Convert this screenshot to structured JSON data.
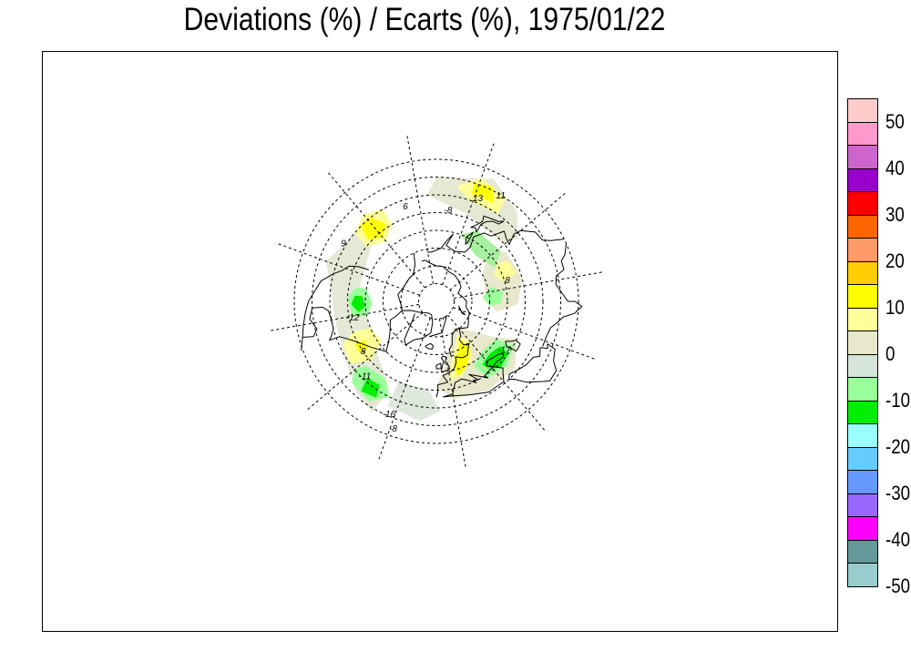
{
  "title": "Deviations (%) / Ecarts (%), 1975/01/22",
  "legend": {
    "levels": [
      {
        "color": "#ffcccc"
      },
      {
        "color": "#ff99cc"
      },
      {
        "color": "#cc66cc"
      },
      {
        "color": "#9900cc"
      },
      {
        "color": "#ff0000"
      },
      {
        "color": "#ff6600"
      },
      {
        "color": "#ff9966"
      },
      {
        "color": "#ffcc00"
      },
      {
        "color": "#ffff00"
      },
      {
        "color": "#ffff99"
      },
      {
        "color": "#e8e8cc"
      },
      {
        "color": "#d4e4d8"
      },
      {
        "color": "#99ff99"
      },
      {
        "color": "#00ee00"
      },
      {
        "color": "#99ffff"
      },
      {
        "color": "#66ccff"
      },
      {
        "color": "#6699ff"
      },
      {
        "color": "#9966ff"
      },
      {
        "color": "#ff00ff"
      },
      {
        "color": "#669999"
      },
      {
        "color": "#99cccc"
      }
    ],
    "labels": [
      "50",
      "40",
      "30",
      "20",
      "10",
      "0",
      "-10",
      "-20",
      "-30",
      "-40",
      "-50"
    ]
  },
  "contour_labels": [
    {
      "text": "-8",
      "lon": -30,
      "lat": 12
    },
    {
      "text": "9",
      "lon": -130,
      "lat": 28
    },
    {
      "text": "-12",
      "lon": -88,
      "lat": 38
    },
    {
      "text": "-11",
      "lon": -55,
      "lat": 28
    },
    {
      "text": "-16",
      "lon": -35,
      "lat": 18
    },
    {
      "text": "8",
      "lon": -65,
      "lat": 38
    },
    {
      "text": "13",
      "lon": 150,
      "lat": 30
    },
    {
      "text": "11",
      "lon": 140,
      "lat": 23
    },
    {
      "text": "-8",
      "lon": 165,
      "lat": 40
    },
    {
      "text": "8",
      "lon": 95,
      "lat": 50
    },
    {
      "text": "-17",
      "lon": 40,
      "lat": 45
    },
    {
      "text": "6",
      "lon": -170,
      "lat": 35
    }
  ]
}
